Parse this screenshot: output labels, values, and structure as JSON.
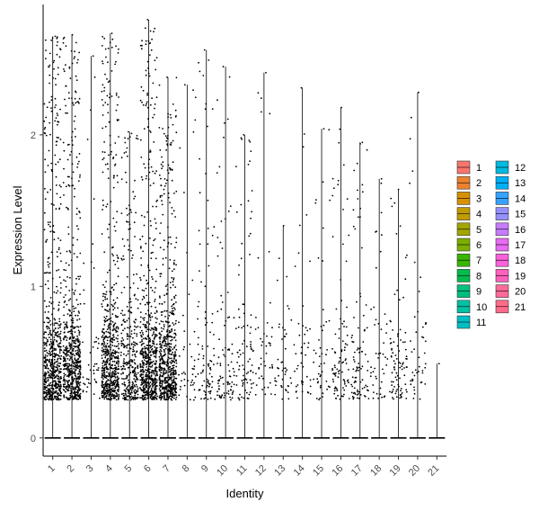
{
  "chart_data": {
    "type": "violin",
    "title": "",
    "xlabel": "Identity",
    "ylabel": "Expression Level",
    "ylim": [
      -0.12,
      2.86
    ],
    "yticks": [
      0,
      1,
      2
    ],
    "categories": [
      "1",
      "2",
      "3",
      "4",
      "5",
      "6",
      "7",
      "8",
      "9",
      "10",
      "11",
      "12",
      "13",
      "14",
      "15",
      "16",
      "17",
      "18",
      "19",
      "20",
      "21"
    ],
    "max_values": [
      2.65,
      2.66,
      2.52,
      2.67,
      2.02,
      2.76,
      2.38,
      2.33,
      2.56,
      2.45,
      2.0,
      2.41,
      1.4,
      2.31,
      2.04,
      2.18,
      1.95,
      1.71,
      1.64,
      2.28,
      0.49
    ],
    "point_density": [
      "very high",
      "very high",
      "low",
      "very high",
      "high",
      "very high",
      "very high",
      "low",
      "medium",
      "medium",
      "medium",
      "low",
      "low",
      "low",
      "low",
      "medium",
      "medium",
      "low",
      "medium",
      "low",
      "none"
    ],
    "legend": {
      "position": "right",
      "entries": [
        "1",
        "2",
        "3",
        "4",
        "5",
        "6",
        "7",
        "8",
        "9",
        "10",
        "11",
        "12",
        "13",
        "14",
        "15",
        "16",
        "17",
        "18",
        "19",
        "20",
        "21"
      ],
      "colors": [
        "#F8766D",
        "#EA8331",
        "#D89000",
        "#C09B00",
        "#A3A500",
        "#7CAE00",
        "#39B600",
        "#00BB4E",
        "#00BF7D",
        "#00C1A3",
        "#00BFC4",
        "#00BAE0",
        "#00B0F6",
        "#35A2FF",
        "#9590FF",
        "#C77CFF",
        "#E76BF3",
        "#FA62DB",
        "#FF62BC",
        "#FF6A98",
        "#FF6C8A"
      ]
    },
    "grid": false
  }
}
